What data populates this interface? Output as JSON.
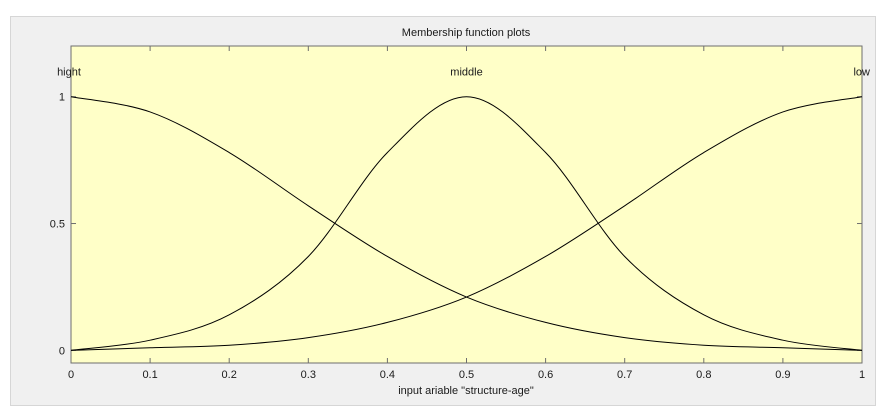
{
  "chart_data": {
    "type": "line",
    "title": "Membership function plots",
    "xlabel": "input ariable \"structure-age\"",
    "ylabel": "",
    "xlim": [
      0,
      1
    ],
    "ylim": [
      -0.05,
      1.2
    ],
    "x_ticks": [
      "0",
      "0.1",
      "0.2",
      "0.3",
      "0.4",
      "0.5",
      "0.6",
      "0.7",
      "0.8",
      "0.9",
      "1"
    ],
    "x_tick_values": [
      0,
      0.1,
      0.2,
      0.3,
      0.4,
      0.5,
      0.6,
      0.7,
      0.8,
      0.9,
      1
    ],
    "y_ticks": [
      "0",
      "0.5",
      "1"
    ],
    "y_tick_values": [
      0,
      0.5,
      1
    ],
    "grid": false,
    "plot_background": "#ffffc8",
    "line_color": "#000000",
    "series": [
      {
        "name": "hight",
        "x": [
          0,
          0.1,
          0.2,
          0.3,
          0.4,
          0.5,
          0.6,
          0.7,
          0.8,
          0.9,
          1
        ],
        "values": [
          1,
          0.94,
          0.78,
          0.57,
          0.37,
          0.21,
          0.11,
          0.05,
          0.02,
          0.01,
          0
        ]
      },
      {
        "name": "middle",
        "x": [
          0,
          0.1,
          0.2,
          0.3,
          0.4,
          0.5,
          0.6,
          0.7,
          0.8,
          0.9,
          1
        ],
        "values": [
          0,
          0.04,
          0.14,
          0.37,
          0.78,
          1,
          0.78,
          0.37,
          0.14,
          0.04,
          0
        ]
      },
      {
        "name": "low",
        "x": [
          0,
          0.1,
          0.2,
          0.3,
          0.4,
          0.5,
          0.6,
          0.7,
          0.8,
          0.9,
          1
        ],
        "values": [
          0,
          0.01,
          0.02,
          0.05,
          0.11,
          0.21,
          0.37,
          0.57,
          0.78,
          0.94,
          1
        ]
      }
    ]
  }
}
